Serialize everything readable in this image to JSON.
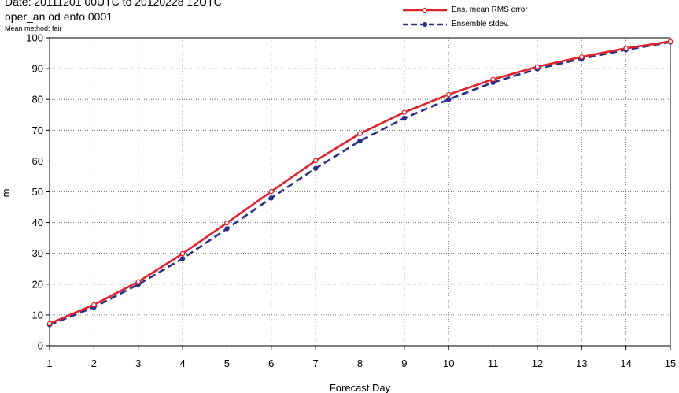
{
  "header": {
    "date_line": "Date: 20111201 00UTC to 20120228 12UTC",
    "subtitle": "oper_an od enfo 0001",
    "mean_method": "Mean method: fair"
  },
  "legend": [
    {
      "label": "Ens. mean RMS error",
      "color": "#e0222c",
      "dashed": false
    },
    {
      "label": "Ensemble stdev.",
      "color": "#2b2f86",
      "dashed": true
    }
  ],
  "chart_data": {
    "type": "line",
    "xlabel": "Forecast Day",
    "ylabel": "m",
    "xlim": [
      1,
      15
    ],
    "ylim": [
      0,
      100
    ],
    "x": [
      1,
      2,
      3,
      4,
      5,
      6,
      7,
      8,
      9,
      10,
      11,
      12,
      13,
      14,
      15
    ],
    "x_ticks": [
      "1",
      "2",
      "3",
      "4",
      "5",
      "6",
      "7",
      "8",
      "9",
      "10",
      "11",
      "12",
      "13",
      "14",
      "15"
    ],
    "y_ticks": [
      "0",
      "10",
      "20",
      "30",
      "40",
      "50",
      "60",
      "70",
      "80",
      "90",
      "100"
    ],
    "grid": true,
    "legend_position": "top-right",
    "series": [
      {
        "name": "Ens. mean RMS error",
        "color": "#e0222c",
        "dashed": false,
        "values": [
          7.2,
          13.3,
          20.8,
          29.9,
          39.9,
          50.1,
          60.1,
          68.9,
          75.8,
          81.6,
          86.5,
          90.6,
          93.8,
          96.6,
          98.8
        ]
      },
      {
        "name": "Ensemble stdev.",
        "color": "#2b2f86",
        "dashed": true,
        "values": [
          6.8,
          12.5,
          19.9,
          28.3,
          38.0,
          48.0,
          57.6,
          66.5,
          73.9,
          80.0,
          85.5,
          89.9,
          93.2,
          96.1,
          98.6
        ]
      }
    ]
  }
}
